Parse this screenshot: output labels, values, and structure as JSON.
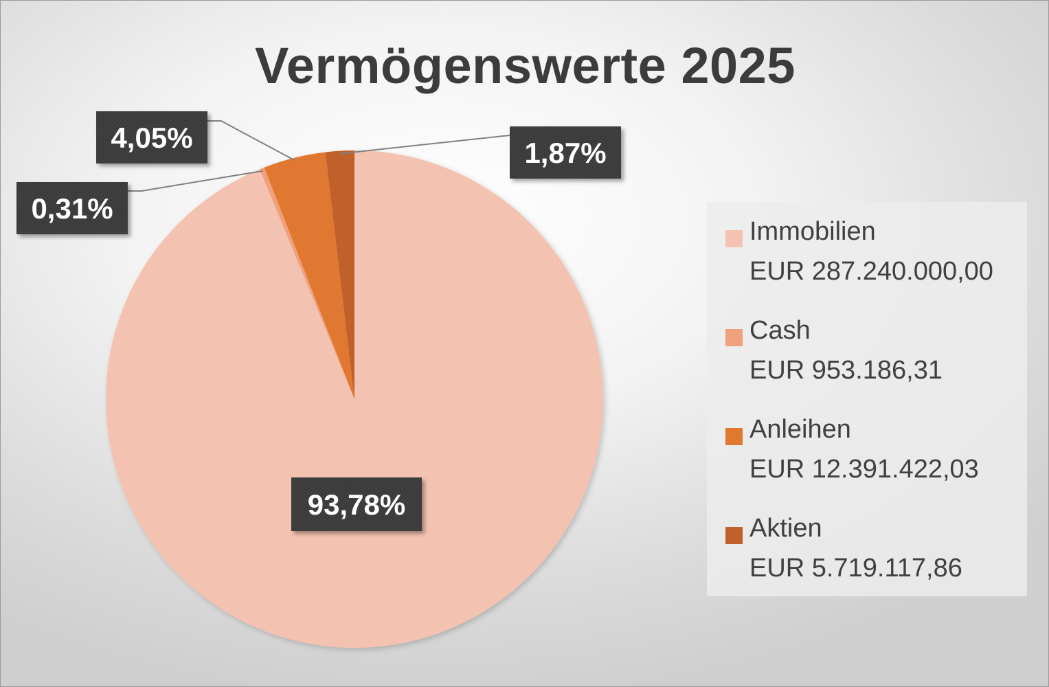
{
  "chart_data": {
    "type": "pie",
    "title": "Vermögenswerte 2025",
    "categories": [
      "Immobilien",
      "Cash",
      "Anleihen",
      "Aktien"
    ],
    "values": [
      287240000.0,
      953186.31,
      12391422.03,
      5719117.86
    ],
    "value_labels": [
      "EUR 287.240.000,00",
      "EUR 953.186,31",
      "EUR 12.391.422,03",
      "EUR 5.719.117,86"
    ],
    "percent_labels": [
      "93,78%",
      "0,31%",
      "4,05%",
      "1,87%"
    ],
    "colors": [
      "#f4c2b0",
      "#f0a07c",
      "#e07830",
      "#c0602a"
    ],
    "legend_position": "right",
    "start_angle": "top",
    "direction": "clockwise"
  }
}
